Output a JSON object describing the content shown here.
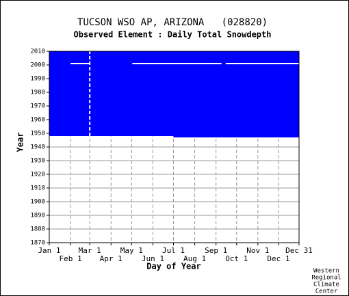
{
  "chart_data": {
    "type": "coverage",
    "title": "TUCSON WSO AP, ARIZONA   (028820)",
    "subtitle": "Observed Element : Daily Total Snowdepth",
    "xlabel": "Day of Year",
    "ylabel": "Year",
    "credit": [
      "Western",
      "Regional",
      "Climate",
      "Center"
    ],
    "color": "#0000ff",
    "gap_color": "#ffffff",
    "xlim": [
      1,
      365
    ],
    "xticks": [
      {
        "value": 1,
        "label": "Jan 1"
      },
      {
        "value": 32,
        "label": "Feb 1"
      },
      {
        "value": 60,
        "label": "Mar 1"
      },
      {
        "value": 91,
        "label": "Apr 1"
      },
      {
        "value": 121,
        "label": "May 1"
      },
      {
        "value": 152,
        "label": "Jun 1"
      },
      {
        "value": 182,
        "label": "Jul 1"
      },
      {
        "value": 213,
        "label": "Aug 1"
      },
      {
        "value": 244,
        "label": "Sep 1"
      },
      {
        "value": 274,
        "label": "Oct 1"
      },
      {
        "value": 305,
        "label": "Nov 1"
      },
      {
        "value": 335,
        "label": "Dec 1"
      },
      {
        "value": 365,
        "label": "Dec 31"
      }
    ],
    "ylim": [
      1870,
      2010
    ],
    "yticks": [
      1870,
      1880,
      1890,
      1900,
      1910,
      1920,
      1930,
      1940,
      1950,
      1960,
      1970,
      1980,
      1990,
      2000,
      2010
    ],
    "grid": true,
    "regions": [
      {
        "x": [
          1,
          182
        ],
        "y": [
          1948,
          2010
        ]
      },
      {
        "x": [
          182,
          365
        ],
        "y": [
          1947,
          2010
        ]
      }
    ],
    "gaps": [
      {
        "x": [
          32,
          60
        ],
        "y": [
          2001,
          2001
        ]
      },
      {
        "x": [
          122,
          252
        ],
        "y": [
          2001,
          2001
        ]
      },
      {
        "x": [
          258,
          365
        ],
        "y": [
          2001,
          2001
        ]
      },
      {
        "x": [
          60,
          60
        ],
        "y": [
          1948,
          2010
        ]
      }
    ]
  }
}
